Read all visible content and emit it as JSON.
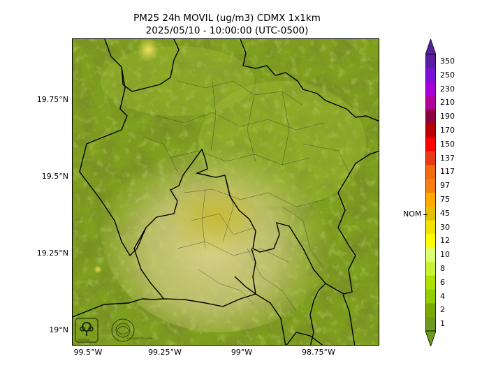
{
  "title": {
    "line1": "PM25 24h MOVIL (ug/m3) CDMX 1x1km",
    "line2": "2025/05/10 - 10:00:00 (UTC-0500)"
  },
  "axes": {
    "y_ticks": [
      "19.75°N",
      "19.5°N",
      "19.25°N",
      "19°N"
    ],
    "x_ticks": [
      "99.5°W",
      "99.25°W",
      "99°W",
      "98.75°W"
    ]
  },
  "colorbar": {
    "labels": [
      "350",
      "250",
      "230",
      "210",
      "190",
      "170",
      "150",
      "137",
      "117",
      "97",
      "75",
      "45",
      "30",
      "12",
      "10",
      "8",
      "6",
      "4",
      "2",
      "1"
    ],
    "colors": [
      "#5a1fa0",
      "#7b11d8",
      "#a700d6",
      "#b2009a",
      "#8e003e",
      "#b80000",
      "#ff0000",
      "#e83a13",
      "#f26d10",
      "#f68012",
      "#ffaa00",
      "#e4c000",
      "#f1e200",
      "#ffff00",
      "#ddff70",
      "#c7f230",
      "#aee000",
      "#93cc00",
      "#7aaa00",
      "#6d9a1a"
    ],
    "nom_label": "NOM"
  },
  "logos": {
    "left": "SEDEMA",
    "right": "CALIDAD DEL AIRE"
  },
  "map": {
    "base_color": "#7ea01e",
    "plume_colors": [
      "#c9c76a",
      "#d8cf83",
      "#c7bd3a"
    ]
  }
}
